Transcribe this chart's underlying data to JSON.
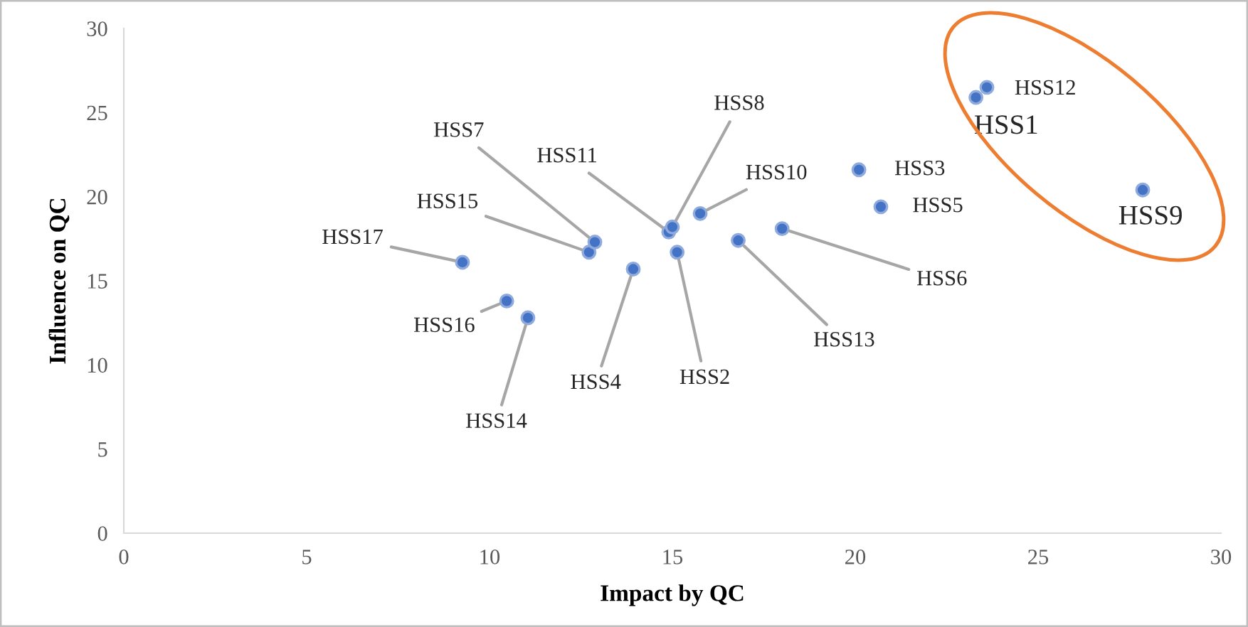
{
  "chart_data": {
    "type": "scatter",
    "xlabel": "Impact by QC",
    "ylabel": "Influence on QC",
    "x": [
      9.26,
      10.47,
      11.05,
      12.72,
      12.88,
      13.93,
      14.9,
      15.0,
      15.76,
      15.13,
      16.8,
      18.0,
      20.1,
      20.7,
      23.6,
      23.3,
      27.86
    ],
    "series": [
      {
        "color": "#4472c4",
        "values": [
          16.1,
          13.8,
          12.8,
          16.7,
          17.3,
          15.7,
          17.9,
          18.2,
          19.0,
          16.7,
          17.4,
          18.1,
          21.6,
          19.4,
          26.5,
          25.9,
          20.4
        ]
      }
    ],
    "annotations": [
      {
        "text": "HSS17",
        "x": 9.26,
        "y": 16.1
      },
      {
        "text": "HSS16",
        "x": 10.47,
        "y": 13.8
      },
      {
        "text": "HSS14",
        "x": 11.05,
        "y": 12.8
      },
      {
        "text": "HSS15",
        "x": 12.72,
        "y": 16.7
      },
      {
        "text": "HSS7",
        "x": 12.88,
        "y": 17.3
      },
      {
        "text": "HSS4",
        "x": 13.93,
        "y": 15.7
      },
      {
        "text": "HSS11",
        "x": 14.9,
        "y": 17.9
      },
      {
        "text": "HSS8",
        "x": 15.0,
        "y": 18.2
      },
      {
        "text": "HSS10",
        "x": 15.76,
        "y": 19.0
      },
      {
        "text": "HSS2",
        "x": 15.13,
        "y": 16.7
      },
      {
        "text": "HSS13",
        "x": 16.8,
        "y": 17.4
      },
      {
        "text": "HSS6",
        "x": 18.0,
        "y": 18.1
      },
      {
        "text": "HSS3",
        "x": 20.1,
        "y": 21.6
      },
      {
        "text": "HSS5",
        "x": 20.7,
        "y": 19.4
      },
      {
        "text": "HSS12",
        "x": 23.6,
        "y": 26.5
      },
      {
        "text": "HSS1",
        "x": 23.3,
        "y": 25.9
      },
      {
        "text": "HSS9",
        "x": 27.86,
        "y": 20.4
      }
    ],
    "xlim": [
      0,
      30
    ],
    "xticks": [
      0,
      5,
      10,
      15,
      20,
      25,
      30
    ],
    "ylim": [
      0,
      30
    ],
    "yticks": [
      0,
      5,
      10,
      15,
      20,
      25,
      30
    ],
    "grid": false,
    "legend": false,
    "marker": "circle"
  }
}
